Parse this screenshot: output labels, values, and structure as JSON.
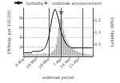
{
  "chart_data": {
    "type": "bar",
    "xlabel": "outbreak period",
    "ylabel": "ER/hosp. per 100,000",
    "y2label": "turbidity (NTU)",
    "categories": [
      "8-Mar",
      null,
      null,
      null,
      null,
      null,
      null,
      null,
      null,
      null,
      "18-Mar",
      null,
      null,
      null,
      null,
      null,
      null,
      null,
      null,
      null,
      "28-Mar",
      null,
      null,
      null,
      null,
      null,
      null,
      null,
      null,
      null,
      "7-Apr",
      null,
      null,
      null,
      null,
      null,
      null,
      "14-Apr",
      null,
      null,
      null,
      null,
      null,
      null,
      "21-Apr",
      null,
      null,
      null,
      null,
      null,
      null,
      null,
      null,
      null,
      null,
      null
    ],
    "series": [
      {
        "type": "bar",
        "color": "#b0b0b0",
        "values": [
          0.3,
          0.5,
          0.4,
          0.6,
          0.4,
          0.5,
          0.6,
          0.5,
          0.4,
          0.3,
          0.5,
          0.6,
          0.4,
          0.5,
          0.4,
          0.5,
          0.6,
          0.7,
          0.5,
          0.4,
          0.6,
          0.5,
          0.8,
          1.0,
          1.2,
          1.5,
          2.5,
          4.0,
          6.0,
          7.8,
          8.5,
          7.5,
          5.5,
          4.5,
          3.5,
          3.0,
          2.5,
          2.2,
          2.0,
          1.8,
          1.5,
          1.3,
          1.1,
          1.0,
          0.9,
          0.8,
          0.7,
          0.6,
          0.6,
          0.5,
          0.5,
          0.4,
          0.4,
          0.4,
          0.3,
          0.3
        ]
      },
      {
        "name": "turbidity",
        "type": "line",
        "axis": "y2",
        "color": "#111111",
        "line_style": "solid",
        "legend": "upper left",
        "values": [
          0.15,
          0.15,
          0.15,
          0.15,
          0.15,
          0.15,
          0.15,
          0.2,
          0.2,
          0.2,
          0.2,
          0.2,
          0.2,
          0.2,
          0.25,
          0.25,
          0.3,
          0.35,
          0.45,
          0.6,
          0.8,
          1.1,
          1.4,
          1.65,
          1.85,
          1.95,
          1.85,
          1.7,
          1.5,
          1.2,
          1.0,
          0.85,
          0.7,
          0.6,
          0.5,
          0.45,
          0.4,
          0.38,
          0.36,
          0.35,
          0.35,
          0.35,
          0.35,
          0.35,
          0.35,
          0.35,
          0.35,
          0.35,
          0.35,
          0.35,
          0.35,
          0.35,
          0.35,
          0.35,
          0.35,
          0.35
        ]
      },
      {
        "name": "outbreak announcement",
        "type": "scatter",
        "marker": "star",
        "color": "#007700",
        "legend": "upper right",
        "values": [
          null,
          null,
          null,
          null,
          null,
          null,
          null,
          null,
          null,
          null,
          null,
          null,
          null,
          null,
          null,
          null,
          null,
          null,
          null,
          null,
          null,
          null,
          null,
          null,
          null,
          null,
          null,
          null,
          null,
          null,
          9.2,
          null,
          null,
          null,
          null,
          null,
          null,
          null,
          null,
          null,
          null,
          null,
          null,
          null,
          null,
          null,
          null,
          null,
          null,
          null,
          null,
          null,
          null,
          null,
          null,
          null
        ]
      }
    ],
    "vlines": [
      {
        "x": 20,
        "color": "#2222cc"
      },
      {
        "x": 47,
        "color": "#2222cc"
      },
      {
        "x": 30,
        "color": "#333333"
      }
    ],
    "ylim": [
      0,
      10
    ],
    "yticks": [
      2,
      4,
      6,
      8
    ],
    "y2lim": [
      0,
      2.0
    ],
    "y2ticks": [
      0.5,
      {
        "value": 1.0,
        "label": "1.0"
      },
      1.5
    ],
    "grid": true
  }
}
